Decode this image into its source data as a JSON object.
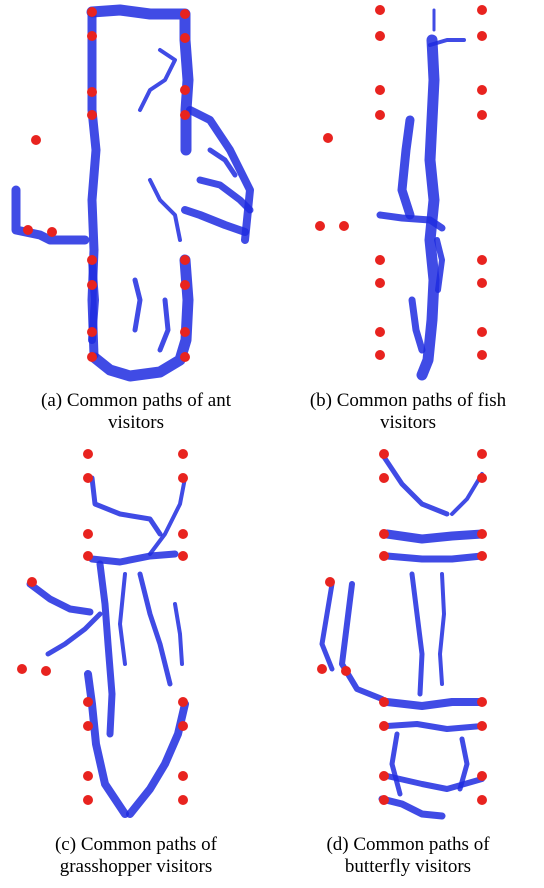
{
  "figure": {
    "marker_color": "#e8231f",
    "path_color": "#1f2be0",
    "panels": [
      {
        "id": "a",
        "caption_line1": "(a) Common paths of ant",
        "caption_line2": "visitors"
      },
      {
        "id": "b",
        "caption_line1": "(b) Common paths of fish",
        "caption_line2": "visitors"
      },
      {
        "id": "c",
        "caption_line1": "(c) Common paths of",
        "caption_line2": "grasshopper visitors"
      },
      {
        "id": "d",
        "caption_line1": "(d) Common paths of",
        "caption_line2": "butterfly visitors"
      }
    ]
  }
}
